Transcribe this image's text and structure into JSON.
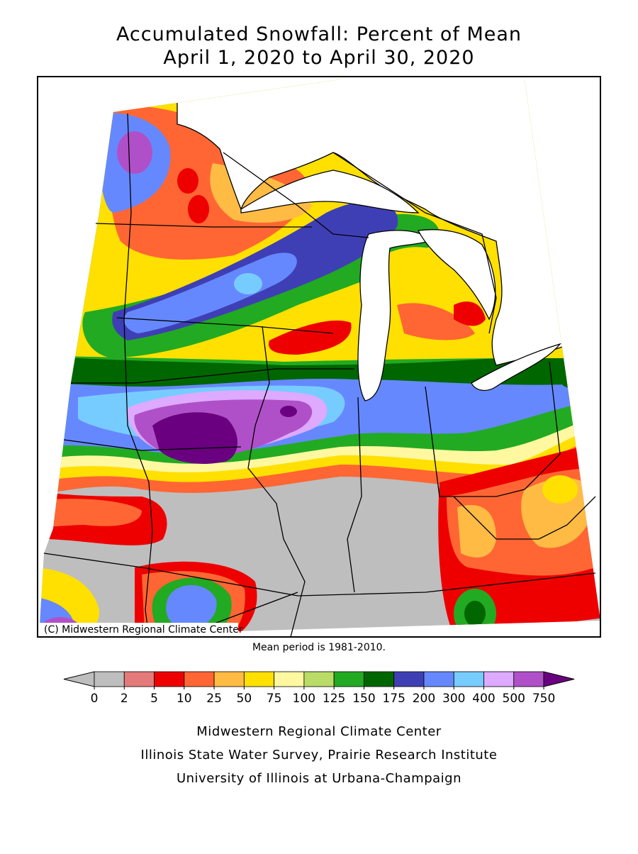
{
  "header": {
    "title_line1": "Accumulated Snowfall: Percent of Mean",
    "title_line2": "April 1, 2020 to April 30, 2020"
  },
  "map": {
    "credit": "(C) Midwestern Regional Climate Center",
    "note": "Mean period is 1981-2010."
  },
  "legend": {
    "ticks": [
      0,
      2,
      5,
      10,
      25,
      50,
      75,
      100,
      125,
      150,
      175,
      200,
      300,
      400,
      500,
      750
    ],
    "colors": [
      "#bebebe",
      "#bebebe",
      "#e47a7a",
      "#ee0000",
      "#ff6633",
      "#ffbb44",
      "#ffe000",
      "#fff8a0",
      "#b8dc66",
      "#22aa22",
      "#006600",
      "#3f3fb5",
      "#6688ff",
      "#77ccff",
      "#ddaaff",
      "#b050c8",
      "#6a0080"
    ]
  },
  "footer": {
    "line1": "Midwestern Regional Climate Center",
    "line2": "Illinois State Water Survey, Prairie Research Institute",
    "line3": "University of Illinois at Urbana-Champaign"
  }
}
